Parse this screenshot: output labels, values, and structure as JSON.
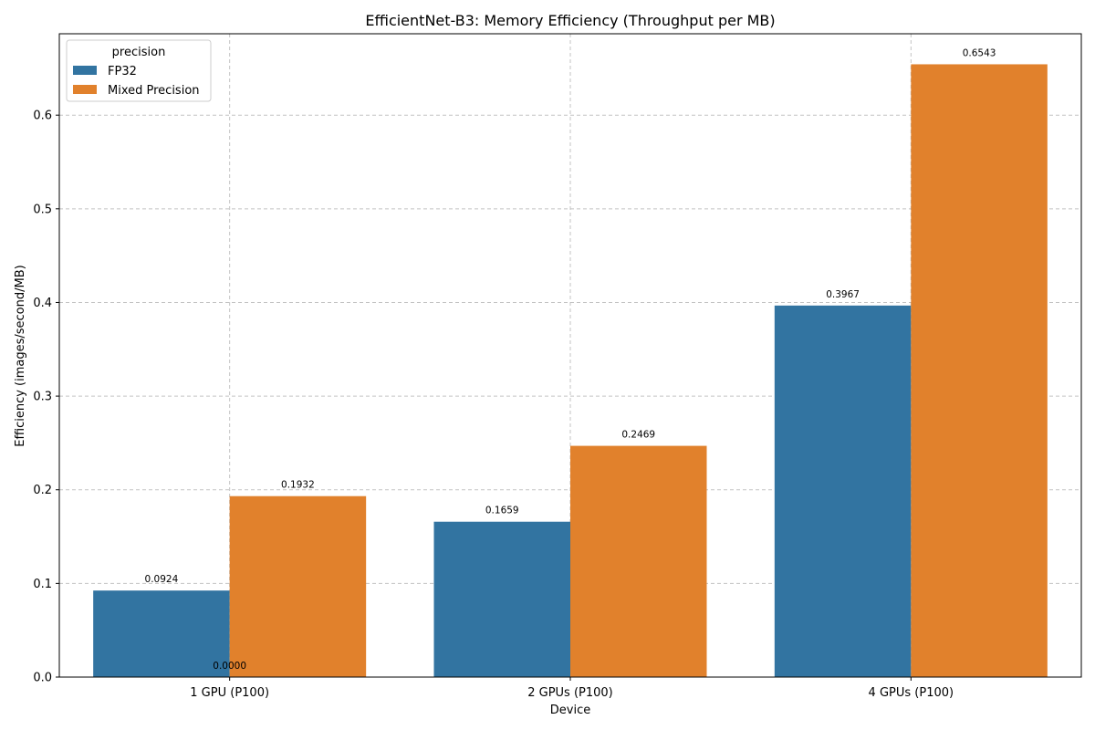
{
  "chart_data": {
    "type": "bar",
    "title": "EfficientNet-B3: Memory Efficiency (Throughput per MB)",
    "xlabel": "Device",
    "ylabel": "Efficiency (images/second/MB)",
    "categories": [
      "1 GPU (P100)",
      "2 GPUs (P100)",
      "4 GPUs (P100)"
    ],
    "series": [
      {
        "name": "FP32",
        "color": "#3274a1",
        "values": [
          0.0924,
          0.1659,
          0.3967
        ],
        "labels": [
          "0.0924",
          "0.1659",
          "0.3967"
        ]
      },
      {
        "name": "Mixed Precision",
        "color": "#e1812c",
        "values": [
          0.1932,
          0.2469,
          0.6543
        ],
        "labels": [
          "0.1932",
          "0.2469",
          "0.6543"
        ]
      }
    ],
    "extra_annotation": {
      "text": "0.0000",
      "value": 0.0
    },
    "ylim": [
      0,
      0.6869
    ],
    "yticks": [
      0.0,
      0.1,
      0.2,
      0.3,
      0.4,
      0.5,
      0.6
    ],
    "ytick_labels": [
      "0.0",
      "0.1",
      "0.2",
      "0.3",
      "0.4",
      "0.5",
      "0.6"
    ],
    "grid": true,
    "legend": {
      "title": "precision",
      "placement": "top-left"
    }
  }
}
